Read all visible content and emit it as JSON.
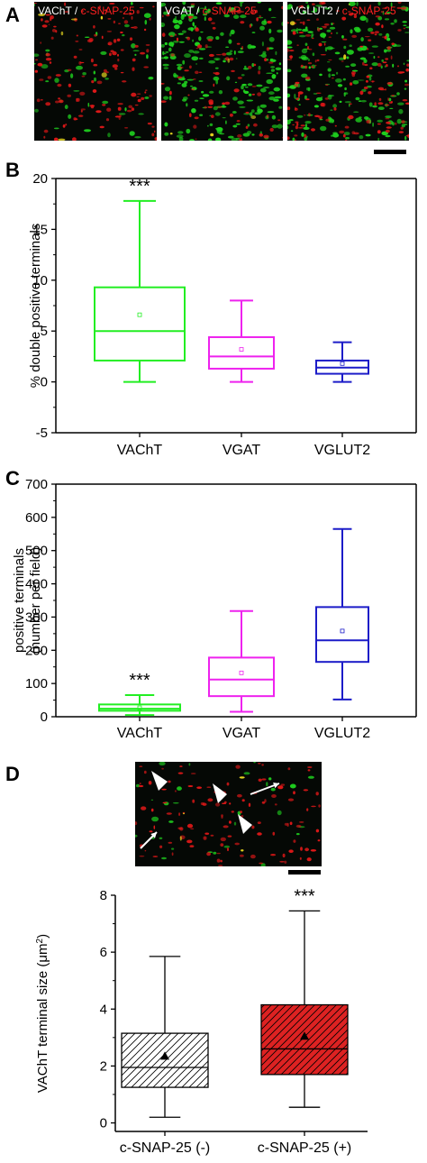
{
  "panels": {
    "A": {
      "letter": "A",
      "images": [
        {
          "marker": "VAChT",
          "sep": " / ",
          "costain": "c-SNAP-25"
        },
        {
          "marker": "VGAT",
          "sep": " / ",
          "costain": "c-SNAP-25"
        },
        {
          "marker": "VGLUT2",
          "sep": " / ",
          "costain": "c-SNAP-25"
        }
      ]
    },
    "B": {
      "letter": "B"
    },
    "C": {
      "letter": "C"
    },
    "D": {
      "letter": "D"
    }
  },
  "colors": {
    "green": "#22ee22",
    "magenta": "#ee22ee",
    "blue": "#1c1cc8",
    "red_fill": "#dd2222",
    "hatch_white": "#ffffff"
  },
  "chart_data": [
    {
      "id": "B",
      "type": "box",
      "ylabel": "% double positive terminals",
      "ylim": [
        -5,
        20
      ],
      "yticks": [
        -5,
        0,
        5,
        10,
        15,
        20
      ],
      "categories": [
        "VAChT",
        "VGAT",
        "VGLUT2"
      ],
      "boxes": [
        {
          "min": 0,
          "q1": 2.1,
          "median": 5.0,
          "q3": 9.3,
          "max": 17.8,
          "mean": 6.6,
          "color": "#22ee22",
          "significance": "***"
        },
        {
          "min": 0,
          "q1": 1.3,
          "median": 2.5,
          "q3": 4.4,
          "max": 8.0,
          "mean": 3.2,
          "color": "#ee22ee",
          "significance": ""
        },
        {
          "min": 0,
          "q1": 0.8,
          "median": 1.4,
          "q3": 2.1,
          "max": 3.9,
          "mean": 1.8,
          "color": "#1c1cc8",
          "significance": ""
        }
      ]
    },
    {
      "id": "C",
      "type": "box",
      "ylabel_lines": [
        "positive terminals",
        "(number per field)"
      ],
      "ylim": [
        0,
        700
      ],
      "yticks": [
        0,
        100,
        200,
        300,
        400,
        500,
        600,
        700
      ],
      "categories": [
        "VAChT",
        "VGAT",
        "VGLUT2"
      ],
      "boxes": [
        {
          "min": 5,
          "q1": 18,
          "median": 24,
          "q3": 37,
          "max": 65,
          "mean": 27,
          "color": "#22ee22",
          "significance": "***"
        },
        {
          "min": 15,
          "q1": 62,
          "median": 112,
          "q3": 178,
          "max": 318,
          "mean": 132,
          "color": "#ee22ee",
          "significance": ""
        },
        {
          "min": 52,
          "q1": 165,
          "median": 230,
          "q3": 330,
          "max": 565,
          "mean": 258,
          "color": "#1c1cc8",
          "significance": ""
        }
      ]
    },
    {
      "id": "D",
      "type": "box",
      "ylabel": "VAChT terminal size (μm",
      "ylabel_sup": "2",
      "ylabel_end": ")",
      "ylim": [
        -0.3,
        8
      ],
      "yticks": [
        0,
        2,
        4,
        6,
        8
      ],
      "categories": [
        "c-SNAP-25 (-)",
        "c-SNAP-25 (+)"
      ],
      "boxes": [
        {
          "min": 0.2,
          "q1": 1.25,
          "median": 1.95,
          "q3": 3.15,
          "max": 5.85,
          "mean": 2.35,
          "fill": "hatch-white",
          "significance": ""
        },
        {
          "min": 0.55,
          "q1": 1.7,
          "median": 2.6,
          "q3": 4.15,
          "max": 7.45,
          "mean": 3.05,
          "fill": "hatch-red",
          "significance": "***"
        }
      ]
    }
  ]
}
